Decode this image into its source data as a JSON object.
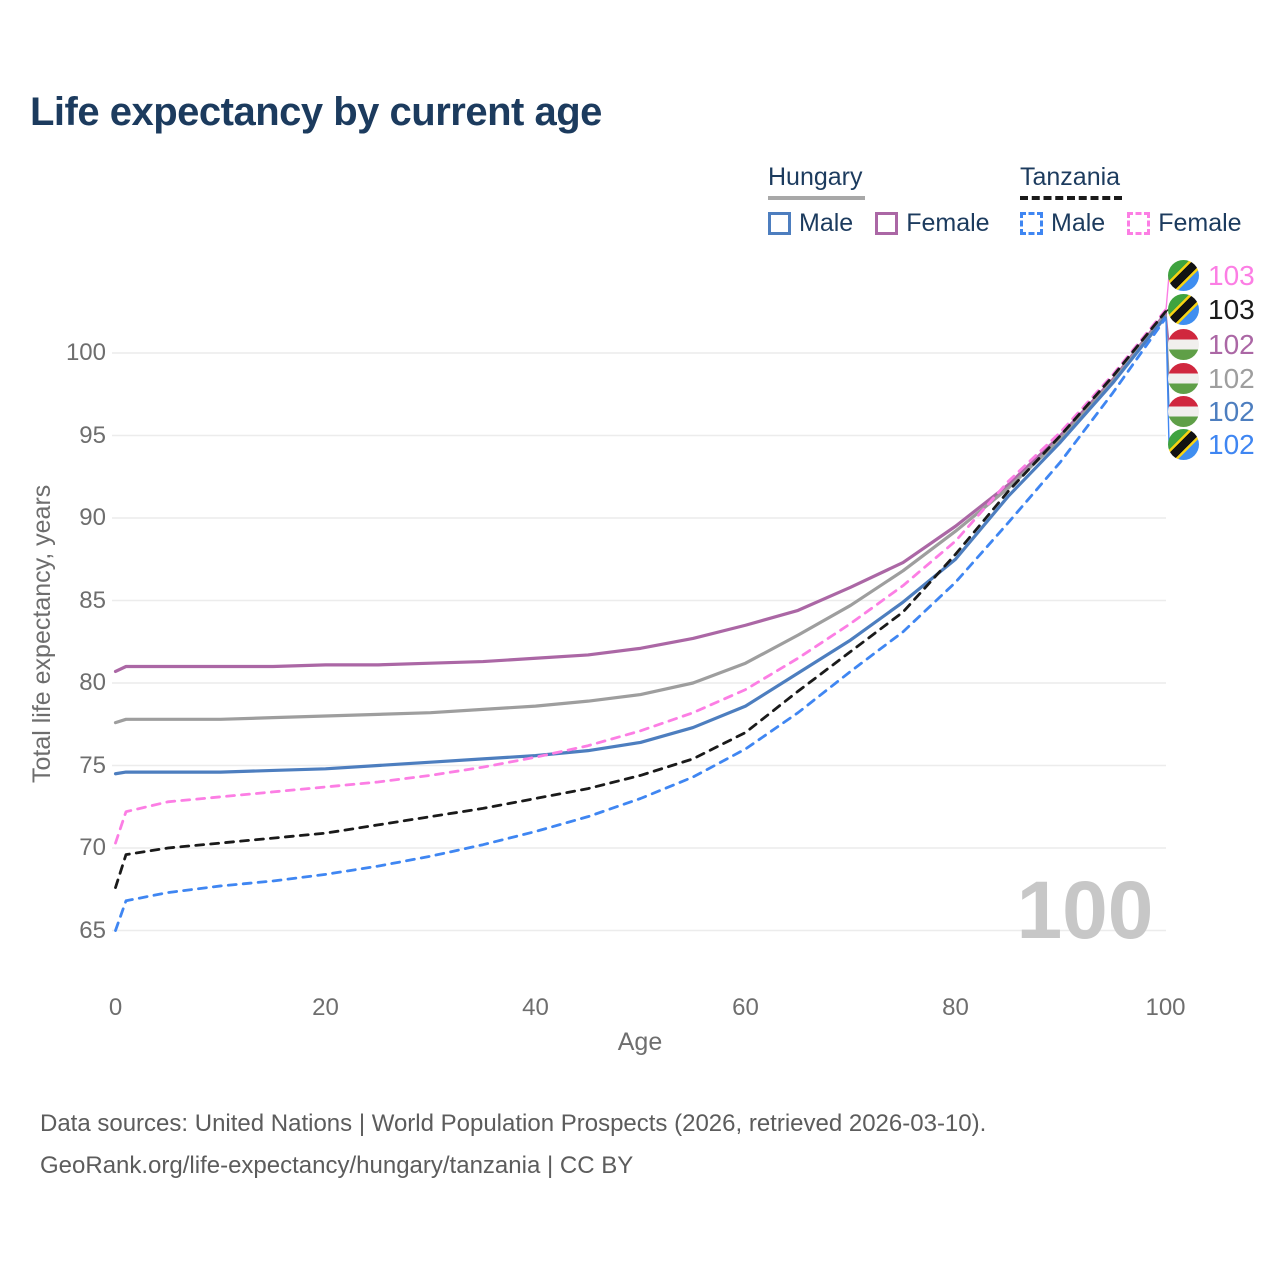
{
  "title": "Life expectancy by current age",
  "watermark": "100",
  "colors": {
    "title_text": "#1c3b5e",
    "axis_text": "#6e6e6e",
    "gridline": "#ececec",
    "watermark": "#c7c7c7",
    "footer_text": "#5c5c5c",
    "hungary_underline": "#a8a8a8",
    "tanzania_underline": "#1a1a1a"
  },
  "legend": {
    "groups": [
      {
        "title": "Hungary",
        "underline_style": "solid",
        "underline_color": "#a8a8a8",
        "items": [
          {
            "label": "Male",
            "color": "#4d7ebf",
            "dashed": false
          },
          {
            "label": "Female",
            "color": "#ab67a5",
            "dashed": false
          }
        ]
      },
      {
        "title": "Tanzania",
        "underline_style": "dashed",
        "underline_color": "#1a1a1a",
        "items": [
          {
            "label": "Male",
            "color": "#3f86f2",
            "dashed": true
          },
          {
            "label": "Female",
            "color": "#fc7ee4",
            "dashed": true
          }
        ]
      }
    ]
  },
  "y_axis": {
    "label": "Total life expectancy, years",
    "ticks": [
      100,
      95,
      90,
      85,
      80,
      75,
      70,
      65
    ]
  },
  "x_axis": {
    "label": "Age",
    "ticks": [
      0,
      20,
      40,
      60,
      80,
      100
    ]
  },
  "end_labels": [
    {
      "value": "103",
      "country": "Tanzania",
      "sex": "Female",
      "color": "#fc7ee4"
    },
    {
      "value": "103",
      "country": "Tanzania",
      "sex": "Both sexes",
      "color": "#1a1a1a"
    },
    {
      "value": "102",
      "country": "Hungary",
      "sex": "Female",
      "color": "#ab67a5"
    },
    {
      "value": "102",
      "country": "Hungary",
      "sex": "Both sexes",
      "color": "#9e9e9e"
    },
    {
      "value": "102",
      "country": "Hungary",
      "sex": "Male",
      "color": "#4d7ebf"
    },
    {
      "value": "102",
      "country": "Tanzania",
      "sex": "Male",
      "color": "#3f86f2"
    }
  ],
  "footer": {
    "line1": "Data sources: United Nations | World Population Prospects (2026, retrieved 2026-03-10).",
    "line2": "GeoRank.org/life-expectancy/hungary/tanzania | CC BY"
  },
  "chart_data": {
    "type": "line",
    "title": "Life expectancy by current age",
    "xlabel": "Age",
    "ylabel": "Total life expectancy, years",
    "xlim": [
      0,
      100
    ],
    "ylim": [
      63.5,
      103
    ],
    "grid": "horizontal",
    "legend_position": "top-right",
    "x": [
      0,
      1,
      5,
      10,
      15,
      20,
      25,
      30,
      35,
      40,
      45,
      50,
      55,
      60,
      65,
      70,
      75,
      80,
      85,
      90,
      95,
      100
    ],
    "series": [
      {
        "name": "Hungary Female",
        "country": "Hungary",
        "sex": "Female",
        "color": "#ab67a5",
        "dashed": false,
        "width": 3.2,
        "values": [
          80.7,
          81.0,
          81.0,
          81.0,
          81.0,
          81.1,
          81.1,
          81.2,
          81.3,
          81.5,
          81.7,
          82.1,
          82.7,
          83.5,
          84.4,
          85.8,
          87.3,
          89.5,
          92.0,
          95.0,
          98.4,
          102.4
        ]
      },
      {
        "name": "Hungary Both sexes",
        "country": "Hungary",
        "sex": "Both sexes",
        "color": "#9e9e9e",
        "dashed": false,
        "width": 3.2,
        "values": [
          77.6,
          77.8,
          77.8,
          77.8,
          77.9,
          78.0,
          78.1,
          78.2,
          78.4,
          78.6,
          78.9,
          79.3,
          80.0,
          81.2,
          82.9,
          84.7,
          86.8,
          89.2,
          91.8,
          94.8,
          98.3,
          102.3
        ]
      },
      {
        "name": "Hungary Male",
        "country": "Hungary",
        "sex": "Male",
        "color": "#4d7ebf",
        "dashed": false,
        "width": 3.2,
        "values": [
          74.5,
          74.6,
          74.6,
          74.6,
          74.7,
          74.8,
          75.0,
          75.2,
          75.4,
          75.6,
          75.9,
          76.4,
          77.3,
          78.6,
          80.6,
          82.6,
          84.9,
          87.5,
          91.3,
          94.6,
          98.2,
          102.2
        ]
      },
      {
        "name": "Tanzania Female",
        "country": "Tanzania",
        "sex": "Female",
        "color": "#fc7ee4",
        "dashed": true,
        "width": 2.8,
        "values": [
          70.3,
          72.2,
          72.8,
          73.1,
          73.4,
          73.7,
          74.0,
          74.4,
          74.9,
          75.5,
          76.2,
          77.1,
          78.2,
          79.6,
          81.5,
          83.6,
          85.9,
          88.6,
          92.2,
          95.2,
          98.7,
          102.6
        ]
      },
      {
        "name": "Tanzania Both sexes",
        "country": "Tanzania",
        "sex": "Both sexes",
        "color": "#1a1a1a",
        "dashed": true,
        "width": 2.8,
        "values": [
          67.6,
          69.6,
          70.0,
          70.3,
          70.6,
          70.9,
          71.4,
          71.9,
          72.4,
          73.0,
          73.6,
          74.4,
          75.4,
          77.0,
          79.5,
          81.9,
          84.3,
          87.8,
          91.6,
          95.0,
          98.6,
          102.5
        ]
      },
      {
        "name": "Tanzania Male",
        "country": "Tanzania",
        "sex": "Male",
        "color": "#3f86f2",
        "dashed": true,
        "width": 2.8,
        "values": [
          65.0,
          66.8,
          67.3,
          67.7,
          68.0,
          68.4,
          68.9,
          69.5,
          70.2,
          71.0,
          71.9,
          73.0,
          74.3,
          76.0,
          78.2,
          80.7,
          83.1,
          86.1,
          89.7,
          93.4,
          97.6,
          102.1
        ]
      }
    ]
  }
}
